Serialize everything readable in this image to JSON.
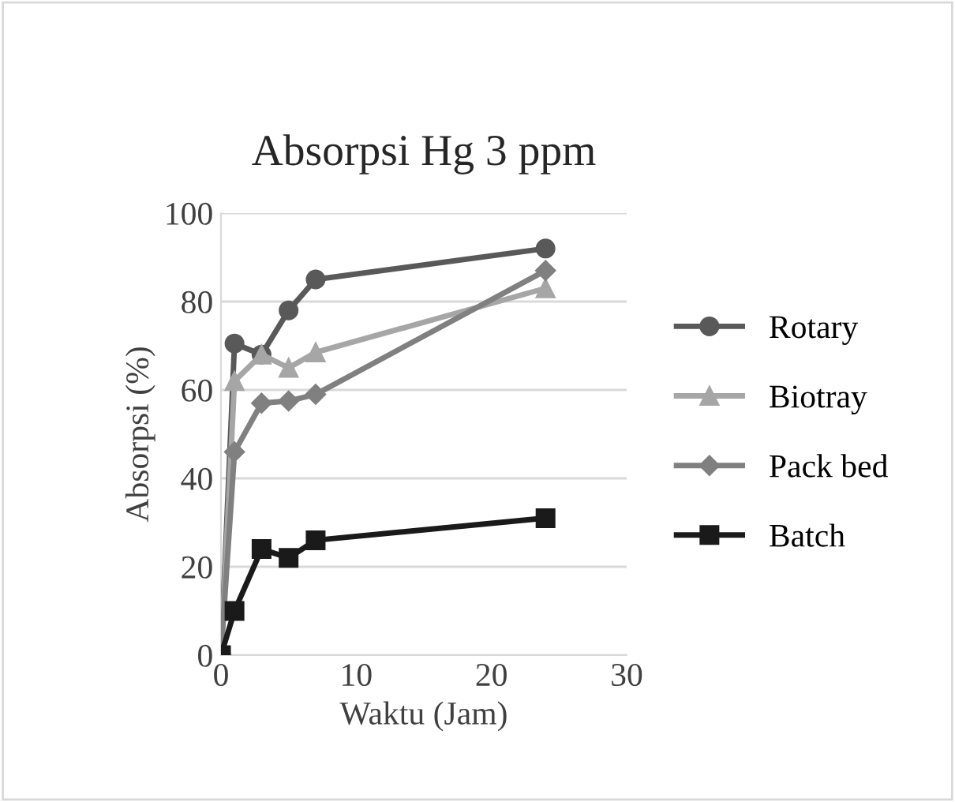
{
  "chart_data": {
    "type": "line",
    "title": "Absorpsi Hg 3 ppm",
    "xlabel": "Waktu (Jam)",
    "ylabel": "Absorpsi (%)",
    "x": [
      0,
      1,
      3,
      5,
      7,
      24
    ],
    "series": [
      {
        "name": "Rotary",
        "color": "#595959",
        "marker": "circle",
        "values": [
          0,
          70.5,
          68,
          78,
          85,
          92
        ]
      },
      {
        "name": "Biotray",
        "color": "#a6a6a6",
        "marker": "triangle",
        "values": [
          0,
          62,
          68,
          65,
          68.5,
          83
        ]
      },
      {
        "name": "Pack bed",
        "color": "#808080",
        "marker": "diamond",
        "values": [
          0,
          46,
          57,
          57.5,
          59,
          87
        ]
      },
      {
        "name": "Batch",
        "color": "#1a1a1a",
        "marker": "square",
        "values": [
          0,
          10,
          24,
          22,
          26,
          31
        ]
      }
    ],
    "xlim": [
      0,
      30
    ],
    "xticks": [
      0,
      10,
      20,
      30
    ],
    "ylim": [
      0,
      100
    ],
    "yticks": [
      0,
      20,
      40,
      60,
      80,
      100
    ],
    "grid": "y",
    "legend": "right"
  }
}
